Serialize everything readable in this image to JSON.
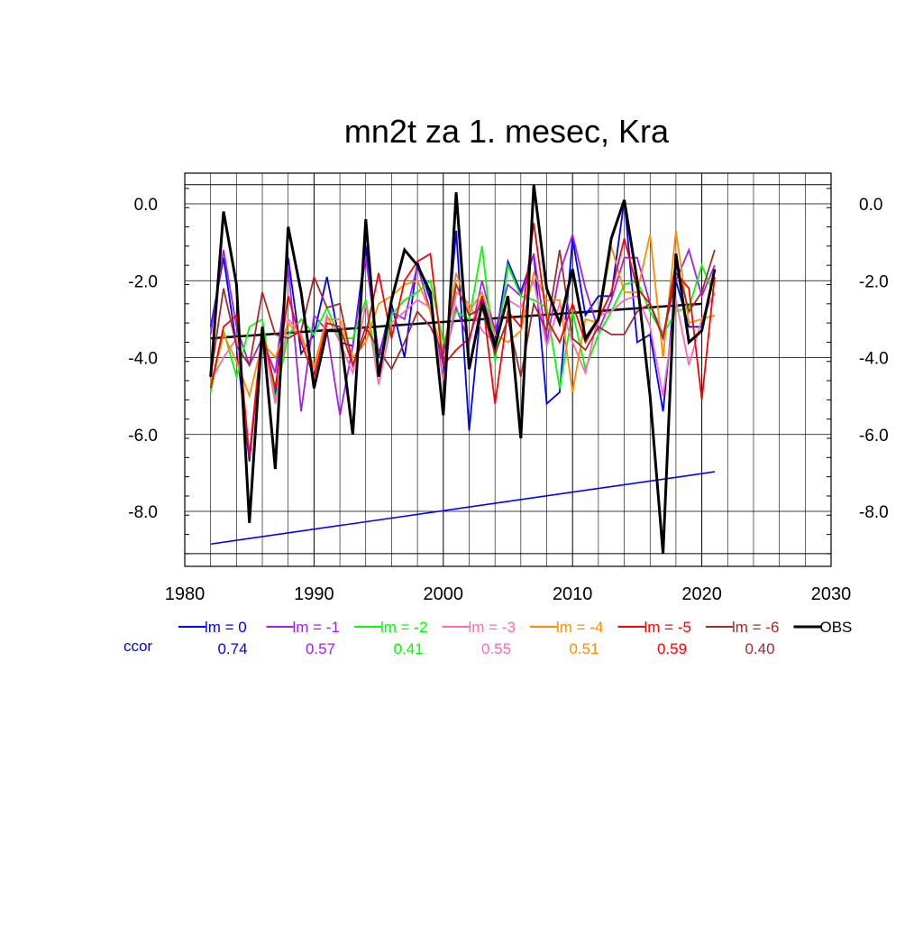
{
  "chart_data": {
    "type": "line",
    "title": "mn2t za 1. mesec, Kra",
    "xlabel": "",
    "ylabel": "",
    "xlim": [
      1980,
      2030
    ],
    "ylim": [
      -9.2,
      0.5
    ],
    "x_ticks": [
      1980,
      1990,
      2000,
      2010,
      2020,
      2030
    ],
    "y_ticks": [
      0.0,
      -2.0,
      -4.0,
      -6.0,
      -8.0
    ],
    "y_tick_labels": [
      "0.0",
      "-2.0",
      "-4.0",
      "-6.0",
      "-8.0"
    ],
    "grid": true,
    "legend_position": "bottom",
    "ccor_label": "ccor",
    "years": [
      1982,
      1983,
      1984,
      1985,
      1986,
      1987,
      1988,
      1989,
      1990,
      1991,
      1992,
      1993,
      1994,
      1995,
      1996,
      1997,
      1998,
      1999,
      2000,
      2001,
      2002,
      2003,
      2004,
      2005,
      2006,
      2007,
      2008,
      2009,
      2010,
      2011,
      2012,
      2013,
      2014,
      2015,
      2016,
      2017,
      2018,
      2019,
      2020,
      2021
    ],
    "series": [
      {
        "name": "lm = 0",
        "ccor": "0.74",
        "color": "#0000ff",
        "values": [
          -3.2,
          -1.4,
          -3.7,
          -6.7,
          -3.3,
          -5.0,
          -1.4,
          -3.9,
          -3.4,
          -1.9,
          -3.6,
          -3.7,
          -1.1,
          -4.0,
          -2.6,
          -4.0,
          -1.5,
          -2.5,
          -4.6,
          -0.7,
          -5.9,
          -2.4,
          -3.6,
          -1.5,
          -2.3,
          -1.3,
          -5.2,
          -4.9,
          -0.9,
          -2.9,
          -2.4,
          -2.4,
          0.1,
          -3.6,
          -3.4,
          -5.4,
          -2.0,
          -3.2,
          -3.2,
          -1.7
        ]
      },
      {
        "name": "lm = -1",
        "ccor": "0.57",
        "color": "#a020f0",
        "values": [
          -3.4,
          -1.2,
          -3.2,
          -4.2,
          -3.5,
          -4.4,
          -1.6,
          -5.4,
          -2.9,
          -3.3,
          -5.5,
          -3.7,
          -1.4,
          -3.9,
          -2.8,
          -3.0,
          -1.6,
          -2.8,
          -4.2,
          -2.7,
          -3.6,
          -2.0,
          -3.3,
          -2.1,
          -2.4,
          -1.3,
          -3.6,
          -1.8,
          -0.8,
          -2.2,
          -3.3,
          -2.5,
          -1.4,
          -1.4,
          -2.6,
          -3.4,
          -2.0,
          -1.2,
          -2.4,
          -1.6
        ]
      },
      {
        "name": "lm = -2",
        "ccor": "0.41",
        "color": "#00ff00",
        "values": [
          -4.9,
          -3.3,
          -4.5,
          -3.2,
          -3.0,
          -5.1,
          -3.4,
          -3.0,
          -3.4,
          -2.7,
          -3.5,
          -3.5,
          -2.5,
          -4.4,
          -2.9,
          -2.5,
          -2.3,
          -2.0,
          -3.6,
          -2.8,
          -3.0,
          -1.1,
          -4.1,
          -1.6,
          -2.4,
          -2.5,
          -2.7,
          -4.8,
          -2.8,
          -4.3,
          -3.4,
          -2.8,
          -2.1,
          -2.0,
          -2.8,
          -3.4,
          -2.8,
          -2.7,
          -1.6,
          -2.4
        ]
      },
      {
        "name": "lm = -3",
        "ccor": "0.55",
        "color": "#ff69b4",
        "values": [
          -4.6,
          -4.0,
          -3.5,
          -6.5,
          -3.3,
          -5.2,
          -3.0,
          -3.4,
          -4.3,
          -2.9,
          -3.6,
          -4.4,
          -2.6,
          -4.7,
          -3.1,
          -2.8,
          -2.5,
          -2.7,
          -4.6,
          -2.3,
          -2.6,
          -3.3,
          -3.6,
          -2.5,
          -2.7,
          -2.0,
          -3.7,
          -2.6,
          -3.6,
          -4.4,
          -2.9,
          -2.8,
          -2.5,
          -2.4,
          -3.2,
          -5.0,
          -2.5,
          -4.2,
          -3.0,
          -2.3
        ]
      },
      {
        "name": "lm = -4",
        "ccor": "0.51",
        "color": "#ff8c00",
        "values": [
          -4.7,
          -3.4,
          -4.1,
          -5.0,
          -3.6,
          -4.0,
          -3.1,
          -3.5,
          -4.2,
          -3.0,
          -3.0,
          -4.0,
          -3.6,
          -2.6,
          -2.4,
          -2.1,
          -2.0,
          -2.8,
          -3.9,
          -1.8,
          -2.8,
          -2.3,
          -3.4,
          -3.6,
          -3.3,
          -1.8,
          -2.5,
          -2.5,
          -4.9,
          -3.0,
          -3.1,
          -1.1,
          -2.3,
          -2.3,
          -0.8,
          -4.0,
          -0.7,
          -3.1,
          -3.0,
          -2.9
        ]
      },
      {
        "name": "lm = -5",
        "ccor": "0.59",
        "color": "#ff0000",
        "values": [
          -4.8,
          -3.2,
          -2.9,
          -6.6,
          -3.3,
          -4.8,
          -2.4,
          -3.6,
          -4.5,
          -3.1,
          -3.2,
          -4.2,
          -3.4,
          -1.8,
          -3.5,
          -2.0,
          -1.5,
          -1.3,
          -4.2,
          -3.8,
          -3.5,
          -2.4,
          -5.2,
          -2.8,
          -3.2,
          -0.5,
          -3.0,
          -3.6,
          -2.6,
          -3.6,
          -3.0,
          -2.3,
          -0.9,
          -2.2,
          -2.6,
          -3.5,
          -1.8,
          -2.2,
          -5.1,
          -1.9
        ]
      },
      {
        "name": "lm = -6",
        "ccor": "0.40",
        "color": "#a52a2a",
        "values": [
          -4.5,
          -2.2,
          -3.7,
          -4.2,
          -2.3,
          -3.4,
          -3.5,
          -3.3,
          -1.9,
          -2.7,
          -2.6,
          -4.2,
          -3.2,
          -3.8,
          -4.3,
          -3.6,
          -2.8,
          -3.2,
          -3.9,
          -2.1,
          -2.9,
          -2.7,
          -3.9,
          -3.0,
          -4.5,
          -2.6,
          -3.3,
          -1.2,
          -3.5,
          -3.8,
          -3.2,
          -3.4,
          -3.4,
          -2.8,
          -2.6,
          -3.5,
          -1.5,
          -2.8,
          -2.3,
          -1.2
        ]
      },
      {
        "name": "OBS",
        "color": "#000000",
        "values": [
          -4.5,
          -0.2,
          -2.1,
          -8.3,
          -3.2,
          -6.9,
          -0.6,
          -2.3,
          -4.8,
          -3.3,
          -3.3,
          -6.0,
          -0.4,
          -4.5,
          -2.5,
          -1.2,
          -1.6,
          -2.3,
          -5.5,
          0.3,
          -4.3,
          -2.6,
          -3.7,
          -2.4,
          -6.1,
          0.5,
          -2.2,
          -3.1,
          -1.7,
          -3.5,
          -3.0,
          -0.9,
          0.1,
          -2.0,
          -5.0,
          -9.1,
          -1.3,
          -3.6,
          -3.3,
          -1.7
        ]
      }
    ],
    "trend_lines": [
      {
        "name": "OBS trend",
        "color": "#000000",
        "x": [
          1982,
          2020
        ],
        "y": [
          -3.5,
          -2.6
        ]
      },
      {
        "name": "blue trend",
        "color": "#0000ff",
        "x": [
          1982,
          2021
        ],
        "y": [
          -8.85,
          -6.97
        ]
      }
    ]
  }
}
